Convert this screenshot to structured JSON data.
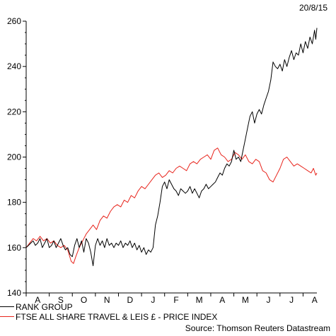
{
  "date_label": "20/8/15",
  "source": "Source: Thomson Reuters Datastream",
  "colors": {
    "rank": "#000000",
    "ftse": "#e8241c"
  },
  "chart_data": {
    "type": "line",
    "y_ticks": [
      140,
      160,
      180,
      200,
      220,
      240,
      260
    ],
    "ylim": [
      140,
      260
    ],
    "xlim": [
      0,
      12.6
    ],
    "x_ticks": [
      "A",
      "S",
      "O",
      "N",
      "D",
      "J",
      "F",
      "M",
      "A",
      "M",
      "J",
      "J",
      "A"
    ],
    "grid": false,
    "legend_position": "bottom-left",
    "series": [
      {
        "name": "RANK GROUP",
        "color": "#000000",
        "points": [
          [
            0.0,
            160
          ],
          [
            0.1,
            161
          ],
          [
            0.2,
            162
          ],
          [
            0.3,
            163
          ],
          [
            0.4,
            161
          ],
          [
            0.5,
            162
          ],
          [
            0.6,
            164
          ],
          [
            0.7,
            160
          ],
          [
            0.8,
            162
          ],
          [
            0.9,
            164
          ],
          [
            1.0,
            160
          ],
          [
            1.1,
            161
          ],
          [
            1.2,
            163
          ],
          [
            1.3,
            160
          ],
          [
            1.4,
            162
          ],
          [
            1.5,
            164
          ],
          [
            1.6,
            161
          ],
          [
            1.7,
            159
          ],
          [
            1.8,
            160
          ],
          [
            1.9,
            157
          ],
          [
            2.0,
            156
          ],
          [
            2.1,
            161
          ],
          [
            2.2,
            164
          ],
          [
            2.3,
            160
          ],
          [
            2.4,
            163
          ],
          [
            2.5,
            158
          ],
          [
            2.6,
            164
          ],
          [
            2.7,
            162
          ],
          [
            2.8,
            158
          ],
          [
            2.9,
            152
          ],
          [
            3.0,
            161
          ],
          [
            3.1,
            164
          ],
          [
            3.2,
            161
          ],
          [
            3.3,
            163
          ],
          [
            3.4,
            160
          ],
          [
            3.5,
            164
          ],
          [
            3.6,
            161
          ],
          [
            3.7,
            162
          ],
          [
            3.8,
            160
          ],
          [
            3.9,
            162
          ],
          [
            4.0,
            161
          ],
          [
            4.1,
            163
          ],
          [
            4.2,
            160
          ],
          [
            4.3,
            162
          ],
          [
            4.4,
            161
          ],
          [
            4.5,
            163
          ],
          [
            4.6,
            160
          ],
          [
            4.7,
            162
          ],
          [
            4.8,
            159
          ],
          [
            4.9,
            161
          ],
          [
            5.0,
            158
          ],
          [
            5.1,
            160
          ],
          [
            5.2,
            157
          ],
          [
            5.3,
            159
          ],
          [
            5.4,
            158
          ],
          [
            5.5,
            160
          ],
          [
            5.6,
            170
          ],
          [
            5.7,
            174
          ],
          [
            5.8,
            180
          ],
          [
            5.9,
            187
          ],
          [
            6.0,
            189
          ],
          [
            6.1,
            186
          ],
          [
            6.2,
            190
          ],
          [
            6.3,
            188
          ],
          [
            6.4,
            186
          ],
          [
            6.5,
            185
          ],
          [
            6.6,
            183
          ],
          [
            6.7,
            186
          ],
          [
            6.8,
            185
          ],
          [
            6.9,
            184
          ],
          [
            7.0,
            185
          ],
          [
            7.1,
            187
          ],
          [
            7.2,
            184
          ],
          [
            7.3,
            186
          ],
          [
            7.4,
            184
          ],
          [
            7.5,
            182
          ],
          [
            7.6,
            185
          ],
          [
            7.7,
            186
          ],
          [
            7.8,
            188
          ],
          [
            7.9,
            186
          ],
          [
            8.0,
            187
          ],
          [
            8.1,
            188
          ],
          [
            8.2,
            189
          ],
          [
            8.3,
            191
          ],
          [
            8.4,
            193
          ],
          [
            8.5,
            192
          ],
          [
            8.6,
            195
          ],
          [
            8.7,
            197
          ],
          [
            8.8,
            196
          ],
          [
            8.9,
            198
          ],
          [
            9.0,
            203
          ],
          [
            9.1,
            199
          ],
          [
            9.2,
            200
          ],
          [
            9.3,
            198
          ],
          [
            9.4,
            203
          ],
          [
            9.5,
            208
          ],
          [
            9.6,
            213
          ],
          [
            9.7,
            218
          ],
          [
            9.8,
            220
          ],
          [
            9.9,
            215
          ],
          [
            10.0,
            219
          ],
          [
            10.1,
            221
          ],
          [
            10.2,
            219
          ],
          [
            10.3,
            223
          ],
          [
            10.4,
            226
          ],
          [
            10.5,
            229
          ],
          [
            10.6,
            234
          ],
          [
            10.7,
            242
          ],
          [
            10.8,
            240
          ],
          [
            10.9,
            239
          ],
          [
            11.0,
            241
          ],
          [
            11.1,
            238
          ],
          [
            11.2,
            243
          ],
          [
            11.3,
            240
          ],
          [
            11.4,
            244
          ],
          [
            11.5,
            247
          ],
          [
            11.6,
            243
          ],
          [
            11.7,
            246
          ],
          [
            11.8,
            245
          ],
          [
            11.9,
            250
          ],
          [
            12.0,
            246
          ],
          [
            12.1,
            251
          ],
          [
            12.2,
            248
          ],
          [
            12.3,
            253
          ],
          [
            12.4,
            250
          ],
          [
            12.5,
            256
          ],
          [
            12.55,
            252
          ],
          [
            12.6,
            257
          ]
        ]
      },
      {
        "name": "FTSE ALL SHARE TRAVEL & LEIS £ - PRICE INDEX",
        "color": "#e8241c",
        "points": [
          [
            0.0,
            160
          ],
          [
            0.15,
            162
          ],
          [
            0.3,
            164
          ],
          [
            0.45,
            163
          ],
          [
            0.6,
            165
          ],
          [
            0.75,
            163
          ],
          [
            0.9,
            164
          ],
          [
            1.05,
            162
          ],
          [
            1.2,
            163
          ],
          [
            1.35,
            161
          ],
          [
            1.5,
            160
          ],
          [
            1.65,
            161
          ],
          [
            1.8,
            159
          ],
          [
            1.95,
            154
          ],
          [
            2.05,
            153
          ],
          [
            2.15,
            156
          ],
          [
            2.3,
            160
          ],
          [
            2.45,
            163
          ],
          [
            2.6,
            166
          ],
          [
            2.75,
            168
          ],
          [
            2.9,
            170
          ],
          [
            3.05,
            168
          ],
          [
            3.2,
            172
          ],
          [
            3.35,
            174
          ],
          [
            3.5,
            173
          ],
          [
            3.65,
            176
          ],
          [
            3.8,
            178
          ],
          [
            3.95,
            179
          ],
          [
            4.1,
            178
          ],
          [
            4.25,
            181
          ],
          [
            4.4,
            180
          ],
          [
            4.55,
            183
          ],
          [
            4.7,
            182
          ],
          [
            4.85,
            185
          ],
          [
            5.0,
            187
          ],
          [
            5.15,
            186
          ],
          [
            5.3,
            188
          ],
          [
            5.45,
            190
          ],
          [
            5.6,
            192
          ],
          [
            5.75,
            193
          ],
          [
            5.9,
            191
          ],
          [
            6.05,
            192
          ],
          [
            6.2,
            194
          ],
          [
            6.35,
            193
          ],
          [
            6.5,
            195
          ],
          [
            6.65,
            196
          ],
          [
            6.8,
            195
          ],
          [
            6.95,
            194
          ],
          [
            7.1,
            197
          ],
          [
            7.25,
            198
          ],
          [
            7.4,
            197
          ],
          [
            7.55,
            199
          ],
          [
            7.7,
            200
          ],
          [
            7.85,
            201
          ],
          [
            8.0,
            199
          ],
          [
            8.15,
            203
          ],
          [
            8.3,
            204
          ],
          [
            8.45,
            201
          ],
          [
            8.6,
            200
          ],
          [
            8.75,
            198
          ],
          [
            8.9,
            199
          ],
          [
            9.05,
            202
          ],
          [
            9.2,
            201
          ],
          [
            9.35,
            199
          ],
          [
            9.5,
            201
          ],
          [
            9.65,
            198
          ],
          [
            9.8,
            197
          ],
          [
            9.95,
            199
          ],
          [
            10.1,
            198
          ],
          [
            10.25,
            194
          ],
          [
            10.4,
            193
          ],
          [
            10.55,
            190
          ],
          [
            10.7,
            189
          ],
          [
            10.85,
            192
          ],
          [
            11.0,
            195
          ],
          [
            11.15,
            199
          ],
          [
            11.3,
            200
          ],
          [
            11.45,
            198
          ],
          [
            11.6,
            196
          ],
          [
            11.75,
            197
          ],
          [
            11.9,
            196
          ],
          [
            12.05,
            195
          ],
          [
            12.2,
            194
          ],
          [
            12.35,
            193
          ],
          [
            12.45,
            195
          ],
          [
            12.55,
            192
          ],
          [
            12.6,
            193
          ]
        ]
      }
    ]
  }
}
